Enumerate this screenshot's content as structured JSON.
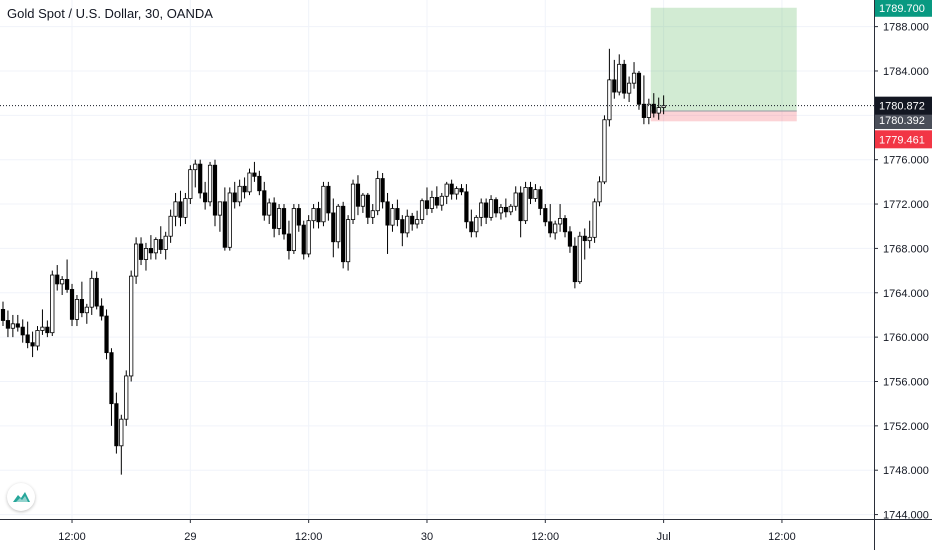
{
  "header": {
    "title": "Gold Spot / U.S. Dollar, 30, OANDA"
  },
  "icons": {
    "logo": "tradingview-logo-icon"
  },
  "colors": {
    "up_body": "#ffffff",
    "down_body": "#000000",
    "wick": "#000000",
    "grid": "#f0f3fa",
    "axis_line": "#2a2e39",
    "profit_zone": "rgba(76,175,80,0.25)",
    "loss_zone": "rgba(242,54,69,0.22)",
    "target_tag": "#089981",
    "current_tag": "#131722",
    "entry_tag": "#4a4e59",
    "stop_tag": "#f23645",
    "logo": "#26a69a"
  },
  "chart_data": {
    "type": "candlestick",
    "instrument": "Gold Spot / U.S. Dollar",
    "interval": "30",
    "source": "OANDA",
    "y_axis": {
      "ylim": [
        1743.6,
        1790.4
      ],
      "ticks": [
        1744,
        1748,
        1752,
        1756,
        1760,
        1764,
        1768,
        1772,
        1776,
        1780,
        1784,
        1788
      ],
      "tick_labels": [
        "1744.000",
        "1748.000",
        "1752.000",
        "1756.000",
        "1760.000",
        "1764.000",
        "1768.000",
        "1772.000",
        "1776.000",
        "1780.000",
        "1784.000",
        "1788.000"
      ]
    },
    "x_axis": {
      "tick_labels": [
        "12:00",
        "29",
        "12:00",
        "30",
        "12:00",
        "Jul",
        "12:00"
      ],
      "tick_bars": [
        14,
        38,
        62,
        86,
        110,
        134,
        158
      ]
    },
    "price_tags": {
      "target": "1789.700",
      "current": "1780.872",
      "entry": "1780.392",
      "stop": "1779.461"
    },
    "position": {
      "entry": 1780.392,
      "target": 1789.7,
      "stop": 1779.461,
      "start_bar": 132,
      "end_bar": 161
    },
    "current_price": 1780.872,
    "bars": [
      [
        1762.5,
        1763.2,
        1761.0,
        1761.5
      ],
      [
        1761.5,
        1762.4,
        1760.0,
        1760.8
      ],
      [
        1760.8,
        1762.0,
        1760.0,
        1761.2
      ],
      [
        1761.2,
        1762.0,
        1760.5,
        1760.9
      ],
      [
        1760.9,
        1761.6,
        1759.5,
        1760.2
      ],
      [
        1760.2,
        1761.4,
        1759.0,
        1759.5
      ],
      [
        1759.5,
        1760.5,
        1758.2,
        1759.2
      ],
      [
        1759.2,
        1761.0,
        1758.8,
        1760.6
      ],
      [
        1760.6,
        1762.5,
        1760.2,
        1760.9
      ],
      [
        1760.9,
        1761.5,
        1760.0,
        1760.4
      ],
      [
        1760.4,
        1766.0,
        1760.1,
        1765.6
      ],
      [
        1765.6,
        1766.5,
        1764.2,
        1764.8
      ],
      [
        1764.8,
        1765.5,
        1763.8,
        1765.2
      ],
      [
        1765.2,
        1767.0,
        1764.0,
        1764.3
      ],
      [
        1764.3,
        1764.8,
        1761.0,
        1761.6
      ],
      [
        1761.6,
        1763.8,
        1761.0,
        1763.4
      ],
      [
        1763.4,
        1765.0,
        1761.8,
        1762.2
      ],
      [
        1762.2,
        1763.0,
        1761.2,
        1762.7
      ],
      [
        1762.7,
        1766.0,
        1762.0,
        1765.3
      ],
      [
        1765.3,
        1765.9,
        1762.5,
        1762.8
      ],
      [
        1762.8,
        1763.5,
        1761.5,
        1761.9
      ],
      [
        1761.9,
        1762.5,
        1758.0,
        1758.6
      ],
      [
        1758.6,
        1759.0,
        1752.0,
        1754.0
      ],
      [
        1754.0,
        1755.0,
        1749.5,
        1750.2
      ],
      [
        1750.2,
        1753.0,
        1747.6,
        1752.6
      ],
      [
        1752.6,
        1757.0,
        1752.0,
        1756.5
      ],
      [
        1756.5,
        1766.0,
        1756.0,
        1765.5
      ],
      [
        1765.5,
        1769.0,
        1764.8,
        1768.4
      ],
      [
        1768.4,
        1769.0,
        1766.5,
        1767.0
      ],
      [
        1767.0,
        1768.5,
        1766.0,
        1768.0
      ],
      [
        1768.0,
        1769.2,
        1767.0,
        1767.6
      ],
      [
        1767.6,
        1769.0,
        1767.0,
        1768.8
      ],
      [
        1768.8,
        1770.0,
        1767.5,
        1767.9
      ],
      [
        1767.9,
        1769.5,
        1767.0,
        1769.1
      ],
      [
        1769.1,
        1771.5,
        1768.5,
        1770.9
      ],
      [
        1770.9,
        1773.0,
        1770.0,
        1772.2
      ],
      [
        1772.2,
        1773.2,
        1770.0,
        1770.8
      ],
      [
        1770.8,
        1773.0,
        1770.2,
        1772.5
      ],
      [
        1772.5,
        1775.5,
        1772.0,
        1775.1
      ],
      [
        1775.1,
        1776.0,
        1773.5,
        1775.6
      ],
      [
        1775.6,
        1776.0,
        1772.5,
        1773.0
      ],
      [
        1773.0,
        1774.0,
        1771.5,
        1772.2
      ],
      [
        1772.2,
        1775.8,
        1771.8,
        1775.5
      ],
      [
        1775.5,
        1776.0,
        1770.0,
        1771.0
      ],
      [
        1771.0,
        1772.0,
        1769.5,
        1772.2
      ],
      [
        1772.2,
        1773.5,
        1767.8,
        1768.1
      ],
      [
        1768.1,
        1773.5,
        1767.8,
        1773.0
      ],
      [
        1773.0,
        1774.0,
        1771.6,
        1772.2
      ],
      [
        1772.2,
        1774.2,
        1771.8,
        1773.6
      ],
      [
        1773.6,
        1774.4,
        1772.5,
        1773.1
      ],
      [
        1773.1,
        1775.2,
        1772.8,
        1774.8
      ],
      [
        1774.8,
        1775.8,
        1774.0,
        1774.5
      ],
      [
        1774.5,
        1775.0,
        1772.8,
        1773.2
      ],
      [
        1773.2,
        1774.0,
        1770.5,
        1771.0
      ],
      [
        1771.0,
        1772.5,
        1770.2,
        1772.1
      ],
      [
        1772.1,
        1772.6,
        1769.0,
        1769.8
      ],
      [
        1769.8,
        1772.0,
        1769.2,
        1771.6
      ],
      [
        1771.6,
        1772.0,
        1768.8,
        1769.3
      ],
      [
        1769.3,
        1770.5,
        1767.0,
        1767.8
      ],
      [
        1767.8,
        1772.0,
        1767.5,
        1771.6
      ],
      [
        1771.6,
        1772.0,
        1769.5,
        1770.1
      ],
      [
        1770.1,
        1770.5,
        1767.0,
        1767.5
      ],
      [
        1767.5,
        1771.0,
        1767.2,
        1770.5
      ],
      [
        1770.5,
        1772.0,
        1769.8,
        1771.6
      ],
      [
        1771.6,
        1772.2,
        1769.8,
        1770.4
      ],
      [
        1770.4,
        1774.0,
        1770.0,
        1773.6
      ],
      [
        1773.6,
        1774.0,
        1770.5,
        1771.2
      ],
      [
        1771.2,
        1772.5,
        1767.2,
        1768.6
      ],
      [
        1768.6,
        1772.0,
        1768.0,
        1771.8
      ],
      [
        1771.8,
        1772.2,
        1766.2,
        1766.8
      ],
      [
        1766.8,
        1771.0,
        1766.0,
        1770.6
      ],
      [
        1770.6,
        1774.2,
        1770.2,
        1773.8
      ],
      [
        1773.8,
        1774.6,
        1771.0,
        1771.8
      ],
      [
        1771.8,
        1773.0,
        1771.2,
        1772.8
      ],
      [
        1772.8,
        1773.0,
        1770.2,
        1770.8
      ],
      [
        1770.8,
        1772.0,
        1770.2,
        1771.4
      ],
      [
        1771.4,
        1775.0,
        1771.0,
        1774.3
      ],
      [
        1774.3,
        1774.8,
        1771.6,
        1772.2
      ],
      [
        1772.2,
        1773.0,
        1767.5,
        1770.1
      ],
      [
        1770.1,
        1772.0,
        1769.5,
        1771.6
      ],
      [
        1771.6,
        1772.4,
        1770.0,
        1770.6
      ],
      [
        1770.6,
        1771.0,
        1768.2,
        1769.4
      ],
      [
        1769.4,
        1771.5,
        1769.0,
        1770.9
      ],
      [
        1770.9,
        1771.2,
        1769.6,
        1770.2
      ],
      [
        1770.2,
        1771.4,
        1769.8,
        1770.6
      ],
      [
        1770.6,
        1772.5,
        1770.2,
        1772.3
      ],
      [
        1772.3,
        1773.5,
        1771.0,
        1771.6
      ],
      [
        1771.6,
        1773.2,
        1771.2,
        1772.6
      ],
      [
        1772.6,
        1773.6,
        1771.6,
        1771.9
      ],
      [
        1771.9,
        1773.0,
        1771.4,
        1772.7
      ],
      [
        1772.7,
        1774.0,
        1772.0,
        1773.8
      ],
      [
        1773.8,
        1774.2,
        1772.4,
        1772.9
      ],
      [
        1772.9,
        1773.6,
        1772.4,
        1773.4
      ],
      [
        1773.4,
        1773.8,
        1772.8,
        1773.1
      ],
      [
        1773.1,
        1773.8,
        1769.8,
        1770.4
      ],
      [
        1770.4,
        1771.5,
        1769.0,
        1769.5
      ],
      [
        1769.5,
        1771.0,
        1769.0,
        1770.8
      ],
      [
        1770.8,
        1772.5,
        1770.0,
        1772.1
      ],
      [
        1772.1,
        1772.5,
        1770.2,
        1770.8
      ],
      [
        1770.8,
        1772.8,
        1770.5,
        1772.4
      ],
      [
        1772.4,
        1772.6,
        1770.8,
        1771.2
      ],
      [
        1771.2,
        1772.0,
        1770.6,
        1771.7
      ],
      [
        1771.7,
        1772.5,
        1770.8,
        1771.3
      ],
      [
        1771.3,
        1772.0,
        1771.0,
        1771.8
      ],
      [
        1771.8,
        1773.6,
        1771.4,
        1773.0
      ],
      [
        1773.0,
        1773.6,
        1769.0,
        1770.5
      ],
      [
        1770.5,
        1774.0,
        1770.2,
        1773.5
      ],
      [
        1773.5,
        1774.0,
        1772.0,
        1772.5
      ],
      [
        1772.5,
        1773.8,
        1772.2,
        1773.3
      ],
      [
        1773.3,
        1773.6,
        1771.0,
        1771.6
      ],
      [
        1771.6,
        1772.0,
        1770.0,
        1770.4
      ],
      [
        1770.4,
        1772.0,
        1769.0,
        1769.4
      ],
      [
        1769.4,
        1770.5,
        1768.8,
        1770.2
      ],
      [
        1770.2,
        1772.0,
        1769.5,
        1770.7
      ],
      [
        1770.7,
        1771.0,
        1769.0,
        1769.5
      ],
      [
        1769.5,
        1770.0,
        1767.6,
        1768.2
      ],
      [
        1768.2,
        1769.0,
        1764.4,
        1765.0
      ],
      [
        1765.0,
        1769.5,
        1764.8,
        1769.1
      ],
      [
        1769.1,
        1769.8,
        1767.0,
        1768.7
      ],
      [
        1768.7,
        1770.5,
        1768.0,
        1769.0
      ],
      [
        1769.0,
        1772.5,
        1768.5,
        1772.2
      ],
      [
        1772.2,
        1774.5,
        1771.8,
        1774.0
      ],
      [
        1774.0,
        1780.0,
        1773.8,
        1779.6
      ],
      [
        1779.6,
        1786.0,
        1779.0,
        1783.2
      ],
      [
        1783.2,
        1785.0,
        1781.5,
        1782.1
      ],
      [
        1782.1,
        1785.5,
        1781.8,
        1784.6
      ],
      [
        1784.6,
        1785.0,
        1781.5,
        1782.0
      ],
      [
        1782.0,
        1783.5,
        1781.2,
        1782.9
      ],
      [
        1782.9,
        1784.8,
        1782.4,
        1783.8
      ],
      [
        1783.8,
        1784.0,
        1780.5,
        1781.0
      ],
      [
        1781.0,
        1783.6,
        1779.2,
        1779.8
      ],
      [
        1779.8,
        1781.5,
        1779.2,
        1781.0
      ],
      [
        1781.0,
        1782.0,
        1779.8,
        1780.2
      ],
      [
        1780.2,
        1781.6,
        1779.6,
        1780.7
      ],
      [
        1780.7,
        1781.8,
        1780.1,
        1780.872
      ]
    ]
  }
}
